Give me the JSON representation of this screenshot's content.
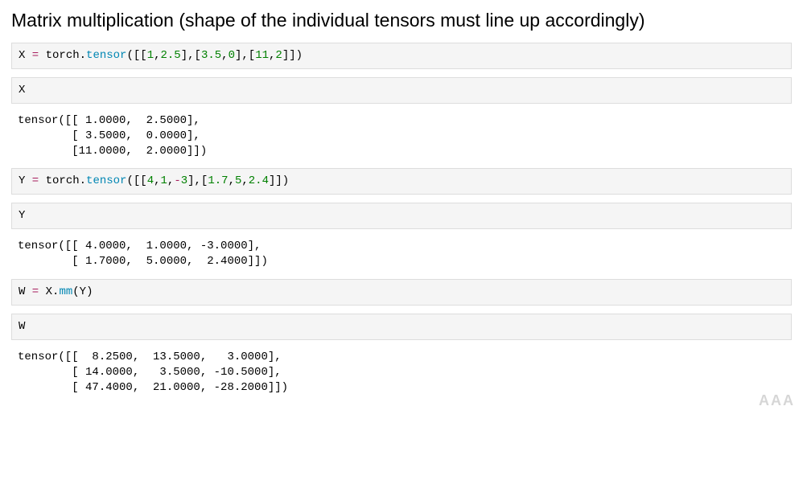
{
  "heading": "Matrix multiplication (shape of the individual tensors must line up accordingly)",
  "cells": {
    "c1": {
      "var": "X",
      "eq": " = ",
      "mod": "torch.",
      "func": "tensor",
      "lp1": "([[",
      "n1": "1",
      "c1": ",",
      "n2": "2.5",
      "mid1": "],[",
      "n3": "3.5",
      "c2": ",",
      "n4": "0",
      "mid2": "],[",
      "n5": "11",
      "c3": ",",
      "n6": "2",
      "rp": "]])"
    },
    "c2": {
      "var": "X"
    },
    "o2": "tensor([[ 1.0000,  2.5000],\n        [ 3.5000,  0.0000],\n        [11.0000,  2.0000]])",
    "c3": {
      "var": "Y",
      "eq": " = ",
      "mod": "torch.",
      "func": "tensor",
      "lp1": "([[",
      "n1": "4",
      "c1": ",",
      "n2": "1",
      "c2": ",",
      "neg": "-",
      "n3": "3",
      "mid1": "],[",
      "n4": "1.7",
      "c3": ",",
      "n5": "5",
      "c4": ",",
      "n6": "2.4",
      "rp": "]])"
    },
    "c4": {
      "var": "Y"
    },
    "o4": "tensor([[ 4.0000,  1.0000, -3.0000],\n        [ 1.7000,  5.0000,  2.4000]])",
    "c5": {
      "var": "W",
      "eq": " = ",
      "obj": "X.",
      "func": "mm",
      "lp": "(",
      "arg": "Y",
      "rp": ")"
    },
    "c6": {
      "var": "W"
    },
    "o6": "tensor([[  8.2500,  13.5000,   3.0000],\n        [ 14.0000,   3.5000, -10.5000],\n        [ 47.4000,  21.0000, -28.2000]])"
  },
  "syntax_colors": {
    "keyword_op": "#a71d5d",
    "function": "#0086b3",
    "number": "#008000",
    "text": "#000000",
    "cell_bg": "#f5f5f5",
    "cell_border": "#dddddd"
  },
  "watermark": "AAA"
}
